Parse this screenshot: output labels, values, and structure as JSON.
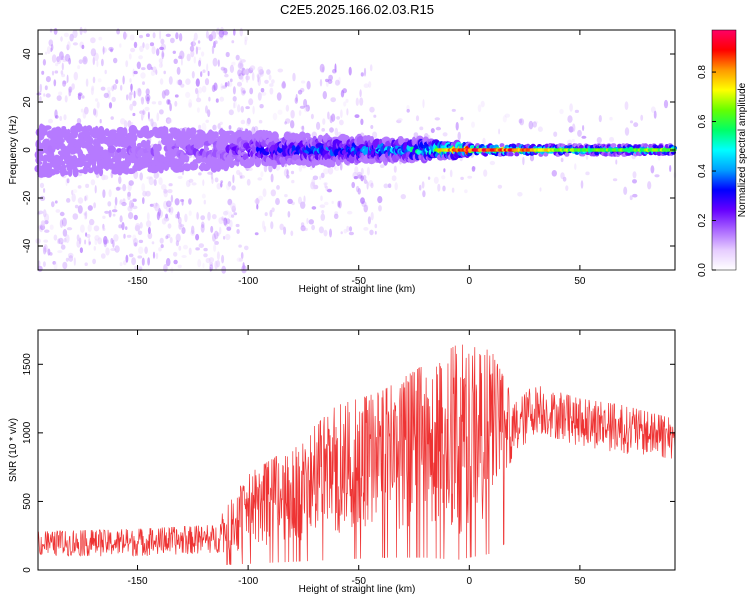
{
  "title": "C2E5.2025.166.02.03.R15",
  "colors": {
    "snr_line": "#ee3333",
    "colormap": [
      "#ffffff",
      "#e6ccff",
      "#aa66ff",
      "#6600ff",
      "#0000ff",
      "#00a0ff",
      "#00ffff",
      "#00ff66",
      "#66ff00",
      "#ffff00",
      "#ff9900",
      "#ff0000",
      "#ff0066"
    ]
  },
  "chart_data": [
    {
      "type": "heatmap",
      "title": "C2E5.2025.166.02.03.R15",
      "xlabel": "Height of straight line (km)",
      "ylabel": "Frequency (Hz)",
      "xlim": [
        -195,
        93
      ],
      "ylim": [
        -50,
        50
      ],
      "xticks": [
        -150,
        -100,
        -50,
        0,
        50
      ],
      "yticks": [
        -40,
        -20,
        0,
        20,
        40
      ],
      "colorbar": {
        "label": "Normalized spectral amplitude",
        "range": [
          0.0,
          0.97
        ],
        "ticks": [
          0.0,
          0.2,
          0.4,
          0.6,
          0.8
        ]
      },
      "band_center_hz": 0,
      "band_halfwidth_hz": [
        [
          -195,
          10
        ],
        [
          -150,
          9
        ],
        [
          -100,
          7
        ],
        [
          -50,
          5
        ],
        [
          -20,
          4
        ],
        [
          0,
          2
        ],
        [
          50,
          2
        ],
        [
          90,
          2
        ]
      ],
      "peak_amplitude": [
        [
          -195,
          0.15
        ],
        [
          -150,
          0.18
        ],
        [
          -110,
          0.25
        ],
        [
          -80,
          0.4
        ],
        [
          -60,
          0.45
        ],
        [
          -30,
          0.5
        ],
        [
          -10,
          0.85
        ],
        [
          0,
          0.95
        ],
        [
          20,
          0.9
        ],
        [
          50,
          0.65
        ],
        [
          90,
          0.7
        ]
      ]
    },
    {
      "type": "line",
      "xlabel": "Height of straight line (km)",
      "ylabel": "SNR (10 * v/v)",
      "xlim": [
        -195,
        93
      ],
      "ylim": [
        0,
        1750
      ],
      "xticks": [
        -150,
        -100,
        -50,
        0,
        50
      ],
      "yticks": [
        0,
        500,
        1000,
        1500
      ],
      "envelope": [
        [
          -195,
          100,
          280
        ],
        [
          -150,
          100,
          300
        ],
        [
          -115,
          120,
          330
        ],
        [
          -100,
          150,
          700
        ],
        [
          -80,
          200,
          900
        ],
        [
          -60,
          250,
          1200
        ],
        [
          -40,
          300,
          1300
        ],
        [
          -20,
          300,
          1500
        ],
        [
          -5,
          250,
          1650
        ],
        [
          10,
          400,
          1600
        ],
        [
          20,
          800,
          1250
        ],
        [
          30,
          1000,
          1350
        ],
        [
          50,
          900,
          1250
        ],
        [
          70,
          850,
          1200
        ],
        [
          93,
          800,
          1100
        ]
      ]
    }
  ]
}
